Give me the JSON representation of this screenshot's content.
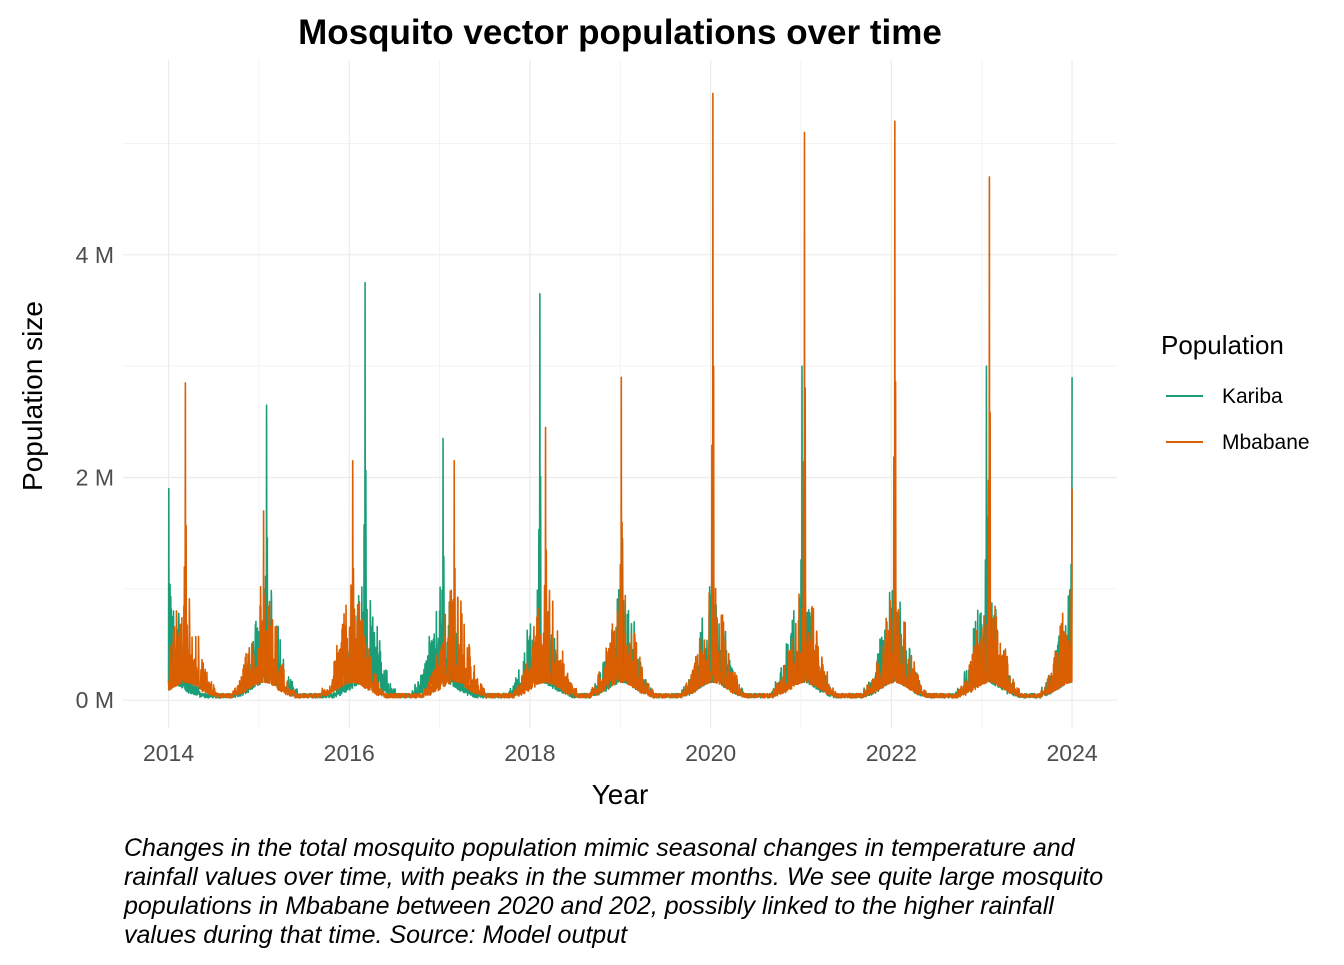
{
  "chart_data": {
    "type": "line",
    "title": "Mosquito vector populations over time",
    "xlabel": "Year",
    "ylabel": "Population size",
    "x_ticks": [
      "2014",
      "2016",
      "2018",
      "2020",
      "2022",
      "2024"
    ],
    "y_ticks": [
      "0 M",
      "2 M",
      "4 M"
    ],
    "y_tick_values": [
      0,
      2000000,
      4000000
    ],
    "xlim": [
      "2013-07-01",
      "2024-07-01"
    ],
    "ylim": [
      -250000,
      5750000
    ],
    "grid": true,
    "legend": {
      "title": "Population",
      "placement": "right",
      "entries": [
        "Kariba",
        "Mbabane"
      ]
    },
    "series": [
      {
        "name": "Kariba",
        "color": "#1B9E77",
        "seasonal_peaks": [
          {
            "date": "2014-01-02",
            "value": 1900000
          },
          {
            "date": "2015-02-01",
            "value": 2650000
          },
          {
            "date": "2016-03-05",
            "value": 3750000
          },
          {
            "date": "2017-01-15",
            "value": 2350000
          },
          {
            "date": "2018-02-10",
            "value": 3650000
          },
          {
            "date": "2019-01-10",
            "value": 1450000
          },
          {
            "date": "2020-01-10",
            "value": 1500000
          },
          {
            "date": "2021-01-05",
            "value": 3000000
          },
          {
            "date": "2022-01-15",
            "value": 2450000
          },
          {
            "date": "2023-01-20",
            "value": 3000000
          },
          {
            "date": "2024-01-01",
            "value": 2900000
          }
        ]
      },
      {
        "name": "Mbabane",
        "color": "#D95F02",
        "seasonal_peaks": [
          {
            "date": "2014-03-10",
            "value": 2850000
          },
          {
            "date": "2015-01-20",
            "value": 1700000
          },
          {
            "date": "2016-01-15",
            "value": 2150000
          },
          {
            "date": "2017-03-01",
            "value": 2150000
          },
          {
            "date": "2018-03-05",
            "value": 2450000
          },
          {
            "date": "2019-01-05",
            "value": 2900000
          },
          {
            "date": "2020-01-10",
            "value": 5450000
          },
          {
            "date": "2021-01-15",
            "value": 5100000
          },
          {
            "date": "2022-01-15",
            "value": 5200000
          },
          {
            "date": "2023-02-01",
            "value": 4700000
          },
          {
            "date": "2024-01-01",
            "value": 1900000
          }
        ]
      }
    ]
  },
  "caption": "Changes in the total mosquito population mimic seasonal changes in temperature and rainfall values over time, with peaks in the summer months. We see quite large mosquito populations in Mbabane between 2020 and 202, possibly linked to the higher rainfall values during that time. Source: Model output"
}
